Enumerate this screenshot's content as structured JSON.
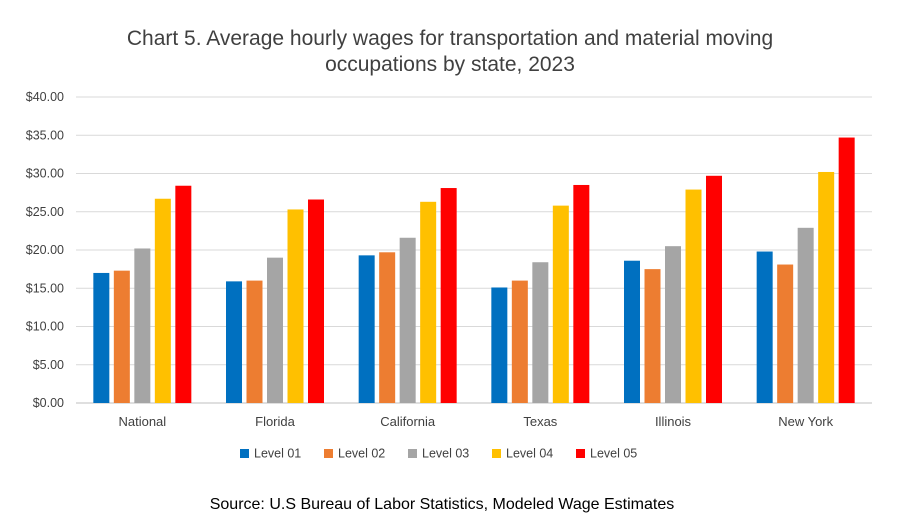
{
  "chart_data": {
    "type": "bar",
    "title_lines": [
      "Chart 5. Average hourly wages for transportation and material moving",
      "occupations by state, 2023"
    ],
    "categories": [
      "National",
      "Florida",
      "California",
      "Texas",
      "Illinois",
      "New York"
    ],
    "series": [
      {
        "name": "Level 01",
        "color": "#0070C0",
        "values": [
          17.0,
          15.9,
          19.3,
          15.1,
          18.6,
          19.8
        ]
      },
      {
        "name": "Level 02",
        "color": "#ED7D31",
        "values": [
          17.3,
          16.0,
          19.7,
          16.0,
          17.5,
          18.1
        ]
      },
      {
        "name": "Level 03",
        "color": "#A5A5A5",
        "values": [
          20.2,
          19.0,
          21.6,
          18.4,
          20.5,
          22.9
        ]
      },
      {
        "name": "Level 04",
        "color": "#FFC000",
        "values": [
          26.7,
          25.3,
          26.3,
          25.8,
          27.9,
          30.2
        ]
      },
      {
        "name": "Level 05",
        "color": "#FF0000",
        "values": [
          28.4,
          26.6,
          28.1,
          28.5,
          29.7,
          34.7
        ]
      }
    ],
    "y_ticks": [
      "$0.00",
      "$5.00",
      "$10.00",
      "$15.00",
      "$20.00",
      "$25.00",
      "$30.00",
      "$35.00",
      "$40.00"
    ],
    "ylim": [
      0,
      40
    ],
    "y_step": 5,
    "grid": true,
    "legend_position": "bottom",
    "source": "Source: U.S Bureau of Labor Statistics, Modeled Wage Estimates"
  }
}
